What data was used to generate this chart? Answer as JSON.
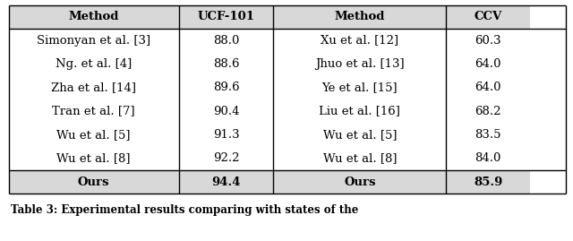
{
  "header": [
    "Method",
    "UCF-101",
    "Method",
    "CCV"
  ],
  "rows": [
    [
      "Simonyan et al. [3]",
      "88.0",
      "Xu et al. [12]",
      "60.3"
    ],
    [
      "Ng. et al. [4]",
      "88.6",
      "Jhuo et al. [13]",
      "64.0"
    ],
    [
      "Zha et al. [14]",
      "89.6",
      "Ye et al. [15]",
      "64.0"
    ],
    [
      "Tran et al. [7]",
      "90.4",
      "Liu et al. [16]",
      "68.2"
    ],
    [
      "Wu et al. [5]",
      "91.3",
      "Wu et al. [5]",
      "83.5"
    ],
    [
      "Wu et al. [8]",
      "92.2",
      "Wu et al. [8]",
      "84.0"
    ]
  ],
  "last_row": [
    "Ours",
    "94.4",
    "Ours",
    "85.9"
  ],
  "caption": "Table 3: Experimental results comparing with states of the",
  "background_color": "#ffffff",
  "header_bg": "#d8d8d8",
  "last_row_bg": "#d8d8d8",
  "font_size": 9.5,
  "caption_font_size": 8.5,
  "col_props": [
    0.305,
    0.17,
    0.31,
    0.15
  ]
}
